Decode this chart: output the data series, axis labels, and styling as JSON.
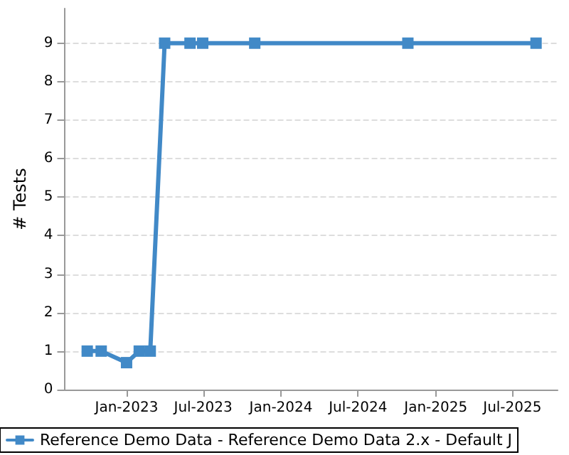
{
  "chart_data": {
    "type": "line",
    "ylabel": "# Tests",
    "x": [
      "2022-09-30",
      "2022-11-02",
      "2023-01-01",
      "2023-01-31",
      "2023-02-26",
      "2023-04-01",
      "2023-05-31",
      "2023-06-30",
      "2023-10-31",
      "2024-10-27",
      "2025-08-26"
    ],
    "series": [
      {
        "name": "Reference Demo Data - Reference Demo Data 2.x - Default J",
        "color": "#4189c7",
        "values": [
          1,
          1,
          0.7,
          1,
          1,
          9,
          9,
          9,
          9,
          9,
          9
        ]
      }
    ],
    "xlim": [
      "2022-08-07",
      "2025-10-16"
    ],
    "xticks": [
      {
        "value": "2023-01",
        "label": "Jan-2023"
      },
      {
        "value": "2023-07",
        "label": "Jul-2023"
      },
      {
        "value": "2024-01",
        "label": "Jan-2024"
      },
      {
        "value": "2024-07",
        "label": "Jul-2024"
      },
      {
        "value": "2025-01",
        "label": "Jan-2025"
      },
      {
        "value": "2025-07",
        "label": "Jul-2025"
      }
    ],
    "ylim": [
      0,
      9.9
    ],
    "yticks": [
      0,
      1,
      2,
      3,
      4,
      5,
      6,
      7,
      8,
      9
    ],
    "grid": "y",
    "legend": "bottom",
    "marker": "square",
    "line_style": "solid"
  }
}
